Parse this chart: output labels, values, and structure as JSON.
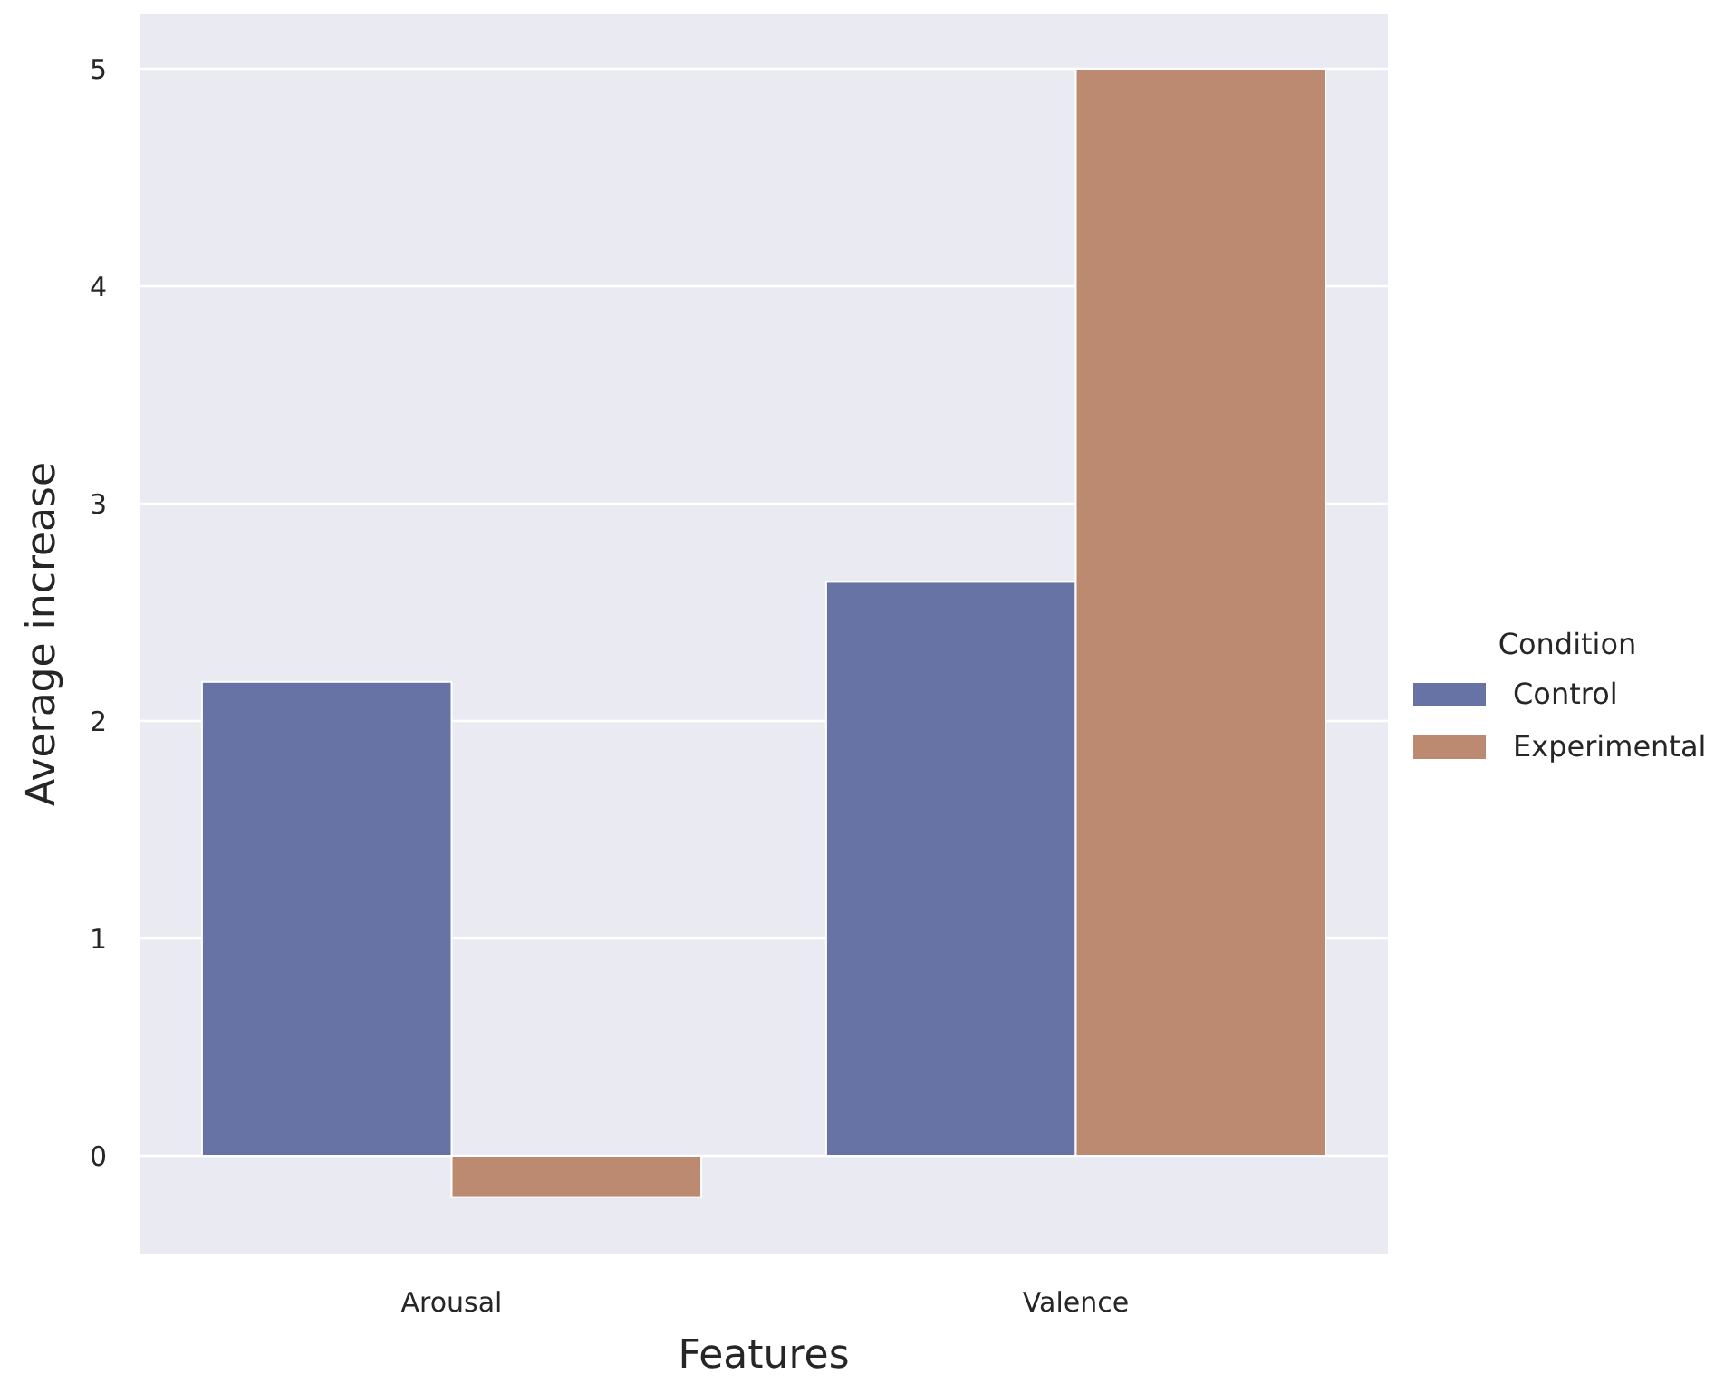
{
  "chart_data": {
    "type": "bar",
    "xlabel": "Features",
    "ylabel": "Average increase",
    "legend_title": "Condition",
    "categories": [
      "Arousal",
      "Valence"
    ],
    "series": [
      {
        "name": "Control",
        "color": "#6673a4",
        "values": [
          2.18,
          2.64
        ]
      },
      {
        "name": "Experimental",
        "color": "#bc8a70",
        "values": [
          -0.19,
          5.0
        ]
      }
    ],
    "ylim": [
      -0.45,
      5.25
    ],
    "yticks": [
      0,
      1,
      2,
      3,
      4,
      5
    ],
    "grid": "y",
    "legend": "right"
  }
}
